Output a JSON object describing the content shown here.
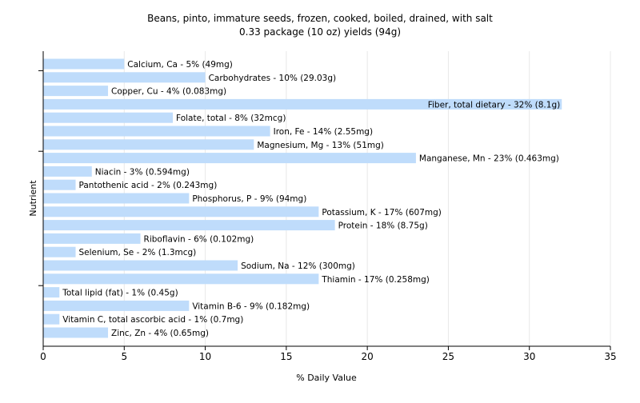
{
  "chart_data": {
    "type": "bar",
    "orientation": "horizontal",
    "title": "Beans, pinto, immature seeds, frozen, cooked, boiled, drained, with salt",
    "subtitle": "0.33 package (10 oz) yields (94g)",
    "xlabel": "% Daily Value",
    "ylabel": "Nutrient",
    "xlim": [
      0,
      35
    ],
    "xticks": [
      0,
      5,
      10,
      15,
      20,
      25,
      30,
      35
    ],
    "grid": true,
    "legend": "none",
    "bar_color": "#bfdcfb",
    "categories": [
      "Calcium, Ca",
      "Carbohydrates",
      "Copper, Cu",
      "Fiber, total dietary",
      "Folate, total",
      "Iron, Fe",
      "Magnesium, Mg",
      "Manganese, Mn",
      "Niacin",
      "Pantothenic acid",
      "Phosphorus, P",
      "Potassium, K",
      "Protein",
      "Riboflavin",
      "Selenium, Se",
      "Sodium, Na",
      "Thiamin",
      "Total lipid (fat)",
      "Vitamin B-6",
      "Vitamin C, total ascorbic acid",
      "Zinc, Zn"
    ],
    "values": [
      5,
      10,
      4,
      32,
      8,
      14,
      13,
      23,
      3,
      2,
      9,
      17,
      18,
      6,
      2,
      12,
      17,
      1,
      9,
      1,
      4
    ],
    "labels": [
      "Calcium, Ca - 5% (49mg)",
      "Carbohydrates - 10% (29.03g)",
      "Copper, Cu - 4% (0.083mg)",
      "Fiber, total dietary - 32% (8.1g)",
      "Folate, total - 8% (32mcg)",
      "Iron, Fe - 14% (2.55mg)",
      "Magnesium, Mg - 13% (51mg)",
      "Manganese, Mn - 23% (0.463mg)",
      "Niacin - 3% (0.594mg)",
      "Pantothenic acid - 2% (0.243mg)",
      "Phosphorus, P - 9% (94mg)",
      "Potassium, K - 17% (607mg)",
      "Protein - 18% (8.75g)",
      "Riboflavin - 6% (0.102mg)",
      "Selenium, Se - 2% (1.3mcg)",
      "Sodium, Na - 12% (300mg)",
      "Thiamin - 17% (0.258mg)",
      "Total lipid (fat) - 1% (0.45g)",
      "Vitamin B-6 - 9% (0.182mg)",
      "Vitamin C, total ascorbic acid - 1% (0.7mg)",
      "Zinc, Zn - 4% (0.65mg)"
    ]
  }
}
